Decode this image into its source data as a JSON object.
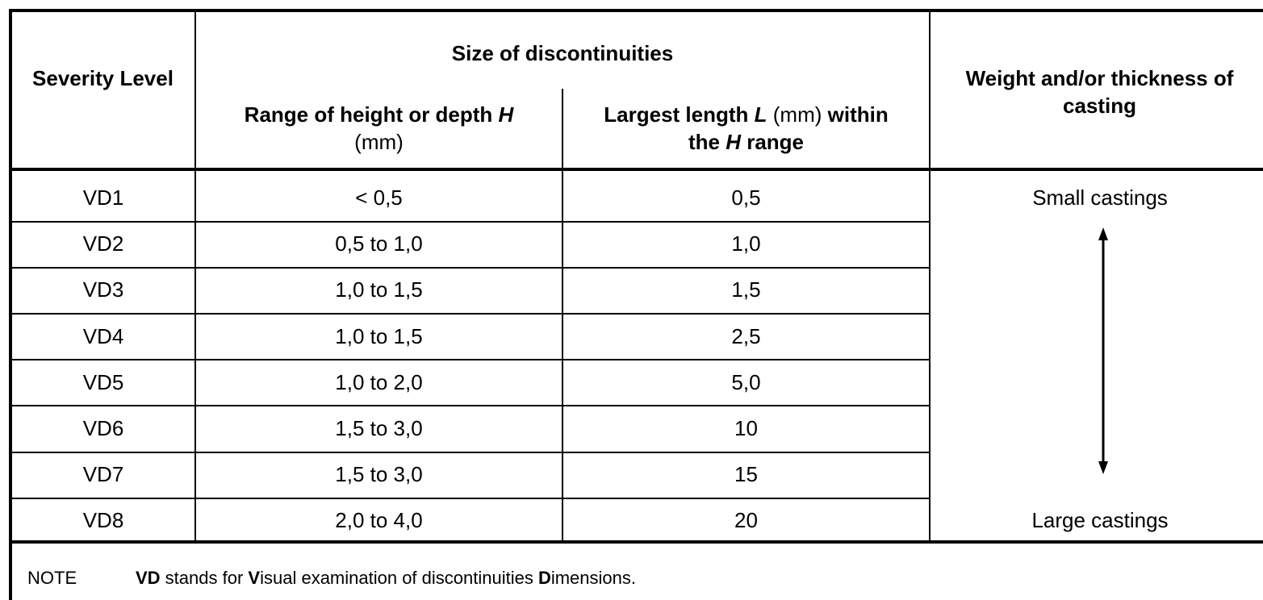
{
  "header": {
    "severity": "Severity Level",
    "group": "Size of discontinuities",
    "range": [
      "Range of height or depth ",
      "H",
      "(mm)"
    ],
    "length": [
      "Largest length ",
      "L",
      " (mm) ",
      "within",
      "the ",
      "H",
      " range"
    ],
    "weight": "Weight and/or thickness of casting"
  },
  "table": {
    "rows": [
      [
        "VD1",
        "< 0,5",
        "0,5"
      ],
      [
        "VD2",
        "0,5 to 1,0",
        "1,0"
      ],
      [
        "VD3",
        "1,0 to 1,5",
        "1,5"
      ],
      [
        "VD4",
        "1,0 to 1,5",
        "2,5"
      ],
      [
        "VD5",
        "1,0 to 2,0",
        "5,0"
      ],
      [
        "VD6",
        "1,5 to 3,0",
        "10"
      ],
      [
        "VD7",
        "1,5 to 3,0",
        "15"
      ],
      [
        "VD8",
        "2,0 to 4,0",
        "20"
      ]
    ]
  },
  "scale": {
    "top": "Small castings",
    "bottom": "Large castings"
  },
  "note": {
    "label": "NOTE",
    "parts": [
      "VD",
      " stands for ",
      "V",
      "isual examination of discontinuities ",
      "D",
      "imensions."
    ]
  }
}
